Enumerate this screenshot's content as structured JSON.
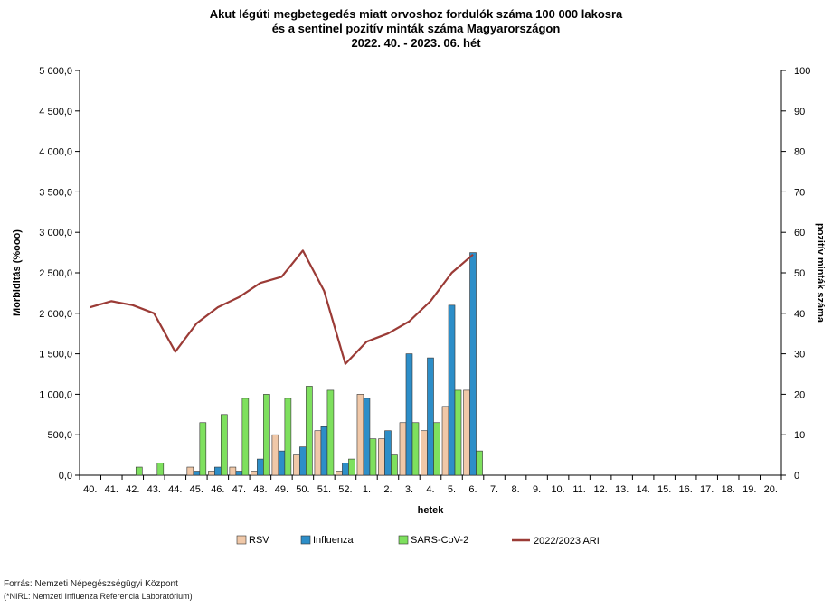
{
  "chart_data": {
    "type": "bar",
    "title": [
      "Akut légúti megbetegedés miatt orvoshoz fordulók száma 100 000 lakosra",
      "és a sentinel pozitív minták száma Magyarországon",
      "2022. 40. - 2023. 06. hét"
    ],
    "xlabel": "hetek",
    "ylabel_left": "Morbiditás (%ooo)",
    "ylabel_right": "pozitív minták száma",
    "categories": [
      "40.",
      "41.",
      "42.",
      "43.",
      "44.",
      "45.",
      "46.",
      "47.",
      "48.",
      "49.",
      "50.",
      "51.",
      "52.",
      "1.",
      "2.",
      "3.",
      "4.",
      "5.",
      "6.",
      "7.",
      "8.",
      "9.",
      "10.",
      "11.",
      "12.",
      "13.",
      "14.",
      "15.",
      "16.",
      "17.",
      "18.",
      "19.",
      "20."
    ],
    "y_left": {
      "ylim": [
        0,
        5000
      ],
      "ticks": [
        0,
        500,
        1000,
        1500,
        2000,
        2500,
        3000,
        3500,
        4000,
        4500,
        5000
      ],
      "tick_labels": [
        "0,0",
        "500,0",
        "1 000,0",
        "1 500,0",
        "2 000,0",
        "2 500,0",
        "3 000,0",
        "3 500,0",
        "4 000,0",
        "4 500,0",
        "5 000,0"
      ]
    },
    "y_right": {
      "ylim": [
        0,
        100
      ],
      "ticks": [
        0,
        10,
        20,
        30,
        40,
        50,
        60,
        70,
        80,
        90,
        100
      ]
    },
    "grid": false,
    "legend_position": "bottom",
    "series": [
      {
        "name": "RSV",
        "kind": "bar",
        "axis": "left",
        "color": "#f0c8a8",
        "values": [
          0,
          0,
          0,
          0,
          0,
          100,
          50,
          100,
          50,
          500,
          250,
          550,
          50,
          1000,
          450,
          650,
          550,
          850,
          1050,
          null,
          null,
          null,
          null,
          null,
          null,
          null,
          null,
          null,
          null,
          null,
          null,
          null,
          null
        ]
      },
      {
        "name": "Influenza",
        "kind": "bar",
        "axis": "left",
        "color": "#2d8ec8",
        "values": [
          0,
          0,
          0,
          0,
          0,
          50,
          100,
          50,
          200,
          300,
          350,
          600,
          150,
          950,
          550,
          1500,
          1450,
          2100,
          2750,
          null,
          null,
          null,
          null,
          null,
          null,
          null,
          null,
          null,
          null,
          null,
          null,
          null,
          null
        ]
      },
      {
        "name": "SARS-CoV-2",
        "kind": "bar",
        "axis": "left",
        "color": "#7ee05e",
        "values": [
          0,
          0,
          100,
          150,
          0,
          650,
          750,
          950,
          1000,
          950,
          1100,
          1050,
          200,
          450,
          250,
          650,
          650,
          1050,
          300,
          null,
          null,
          null,
          null,
          null,
          null,
          null,
          null,
          null,
          null,
          null,
          null,
          null,
          null
        ]
      },
      {
        "name": "2022/2023 ARI",
        "kind": "line",
        "axis": "right",
        "color": "#9b3b36",
        "values": [
          41.5,
          43,
          42,
          40,
          30.5,
          37.5,
          41.5,
          44,
          47.5,
          49,
          55.5,
          45.5,
          27.5,
          33,
          35,
          38,
          43,
          50,
          54.5,
          null,
          null,
          null,
          null,
          null,
          null,
          null,
          null,
          null,
          null,
          null,
          null,
          null,
          null
        ]
      }
    ]
  },
  "source": {
    "line1": "Forrás: Nemzeti Népegészségügyi Központ",
    "line2": "(*NIRL: Nemzeti Influenza Referencia Laboratórium)"
  }
}
